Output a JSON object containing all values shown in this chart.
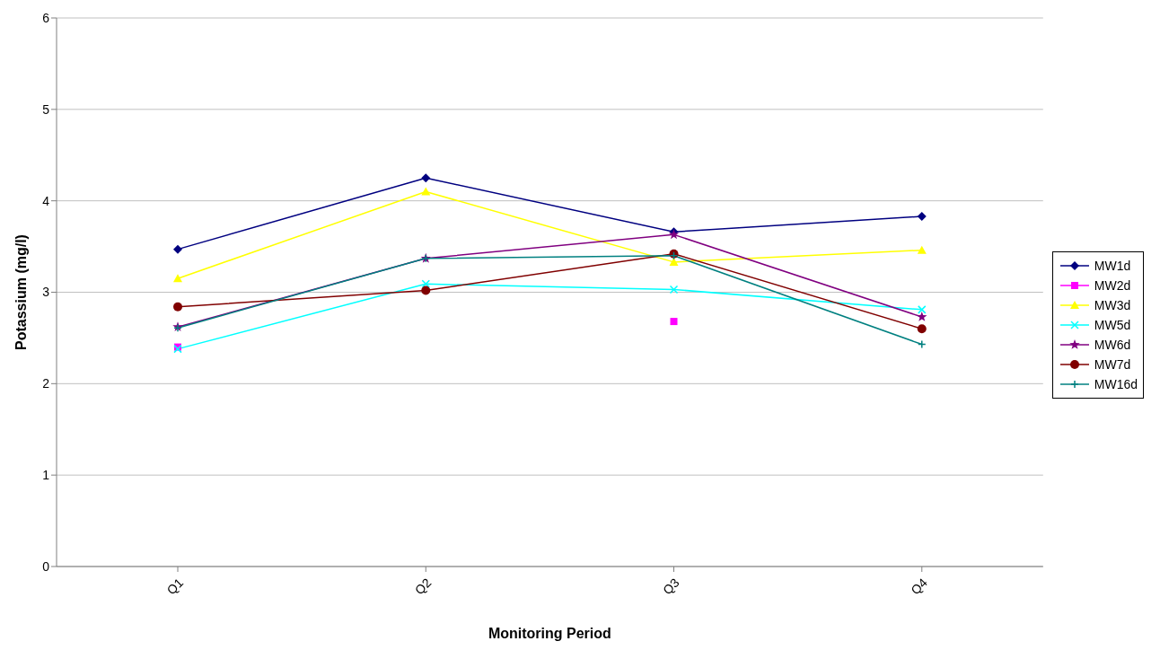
{
  "chart_data": {
    "type": "line",
    "xlabel": "Monitoring Period",
    "ylabel": "Potassium (mg/l)",
    "categories": [
      "Q1",
      "Q2",
      "Q3",
      "Q4"
    ],
    "ylim": [
      0,
      6
    ],
    "yticks": [
      0,
      1,
      2,
      3,
      4,
      5,
      6
    ],
    "grid": "y",
    "legend": "right",
    "line_style": "solid",
    "series": [
      {
        "name": "MW1d",
        "color": "#000080",
        "marker": "diamond",
        "values": [
          3.47,
          4.25,
          3.66,
          3.83
        ]
      },
      {
        "name": "MW2d",
        "type": "scatter",
        "color": "#ff00ff",
        "marker": "square",
        "values": [
          2.4,
          null,
          2.68,
          null
        ]
      },
      {
        "name": "MW3d",
        "color": "#ffff00",
        "marker": "triangle",
        "values": [
          3.15,
          4.1,
          3.33,
          3.46
        ]
      },
      {
        "name": "MW5d",
        "color": "#00ffff",
        "marker": "cross",
        "values": [
          2.38,
          3.09,
          3.03,
          2.81
        ]
      },
      {
        "name": "MW6d",
        "color": "#800080",
        "marker": "star",
        "values": [
          2.62,
          3.37,
          3.63,
          2.73
        ]
      },
      {
        "name": "MW7d",
        "color": "#800000",
        "marker": "circle",
        "values": [
          2.84,
          3.02,
          3.42,
          2.6
        ]
      },
      {
        "name": "MW16d",
        "color": "#008080",
        "marker": "plus",
        "values": [
          2.61,
          3.37,
          3.4,
          2.43
        ]
      }
    ]
  }
}
